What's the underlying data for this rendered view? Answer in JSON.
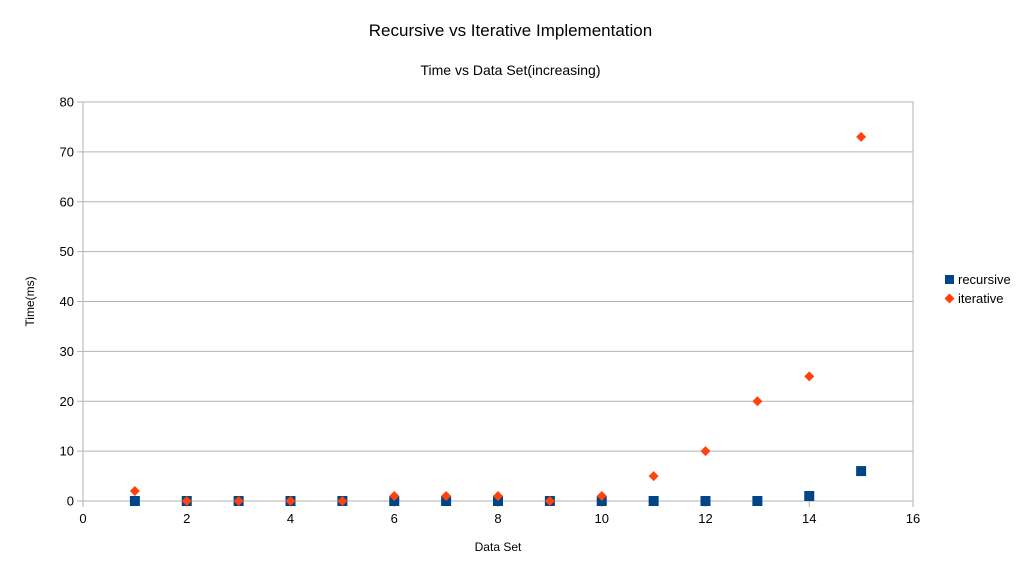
{
  "chart_data": {
    "type": "scatter",
    "title": "Recursive vs Iterative Implementation",
    "subtitle": "Time vs Data Set(increasing)",
    "xlabel": "Data Set",
    "ylabel": "Time(ms)",
    "xlim": [
      0,
      16
    ],
    "ylim": [
      0,
      80
    ],
    "xticks": [
      0,
      2,
      4,
      6,
      8,
      10,
      12,
      14,
      16
    ],
    "yticks": [
      0,
      10,
      20,
      30,
      40,
      50,
      60,
      70,
      80
    ],
    "grid": "horizontal",
    "legend_position": "right",
    "series": [
      {
        "name": "recursive",
        "color": "#004586",
        "marker": "square",
        "x": [
          1,
          2,
          3,
          4,
          5,
          6,
          7,
          8,
          9,
          10,
          11,
          12,
          13,
          14,
          15
        ],
        "y": [
          0,
          0,
          0,
          0,
          0,
          0,
          0,
          0,
          0,
          0,
          0,
          0,
          0,
          1,
          6
        ]
      },
      {
        "name": "iterative",
        "color": "#ff420e",
        "marker": "diamond",
        "x": [
          1,
          2,
          3,
          4,
          5,
          6,
          7,
          8,
          9,
          10,
          11,
          12,
          13,
          14,
          15
        ],
        "y": [
          2,
          0,
          0,
          0,
          0,
          1,
          1,
          1,
          0,
          1,
          5,
          10,
          20,
          25,
          73
        ]
      }
    ]
  }
}
